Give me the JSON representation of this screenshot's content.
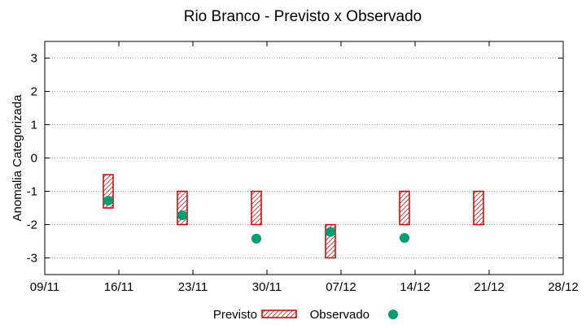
{
  "chart_data": {
    "type": "scatter",
    "title": "Rio Branco - Previsto x Observado",
    "xlabel": "",
    "ylabel": "Anomalia Categorizada",
    "ylim": [
      -3.5,
      3.5
    ],
    "xlim": [
      "09/11",
      "28/12"
    ],
    "yticks": [
      -3,
      -2,
      -1,
      0,
      1,
      2,
      3
    ],
    "xticks": [
      "09/11",
      "16/11",
      "23/11",
      "30/11",
      "07/12",
      "14/12",
      "21/12",
      "28/12"
    ],
    "grid": "horizontal dotted",
    "legend_position": "bottom-center",
    "colors": {
      "previsto": "#cc0000",
      "observado": "#009e73"
    },
    "series": [
      {
        "name": "Previsto",
        "style": "hatched-box",
        "points": [
          {
            "x": "15/11",
            "low": -1.5,
            "high": -0.5
          },
          {
            "x": "22/11",
            "low": -2.0,
            "high": -1.0
          },
          {
            "x": "29/11",
            "low": -2.0,
            "high": -1.0
          },
          {
            "x": "06/12",
            "low": -3.0,
            "high": -2.0
          },
          {
            "x": "13/12",
            "low": -2.0,
            "high": -1.0
          },
          {
            "x": "20/12",
            "low": -2.0,
            "high": -1.0
          }
        ]
      },
      {
        "name": "Observado",
        "style": "dot",
        "points": [
          {
            "x": "15/11",
            "y": -1.28
          },
          {
            "x": "22/11",
            "y": -1.72
          },
          {
            "x": "29/11",
            "y": -2.42
          },
          {
            "x": "06/12",
            "y": -2.22
          },
          {
            "x": "13/12",
            "y": -2.4
          }
        ]
      }
    ]
  }
}
